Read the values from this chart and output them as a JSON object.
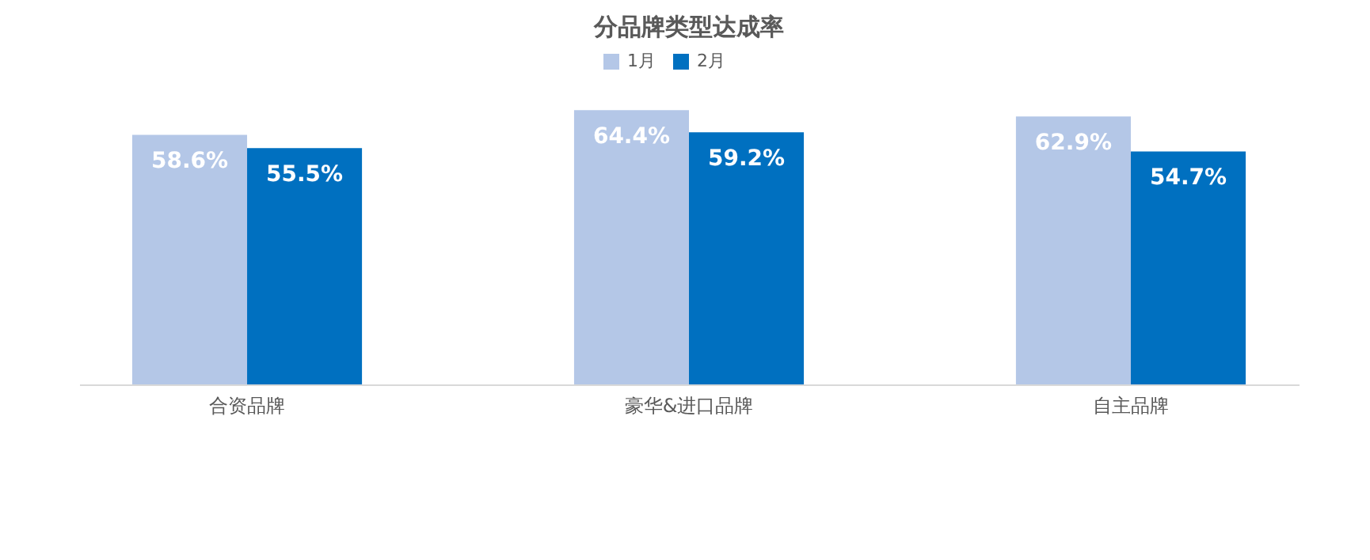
{
  "chart_data": {
    "type": "bar",
    "title": "分品牌类型达成率",
    "categories": [
      "合资品牌",
      "豪华&进口品牌",
      "自主品牌"
    ],
    "series": [
      {
        "name": "1月",
        "color": "#b4c7e7",
        "values": [
          58.6,
          64.4,
          62.9
        ],
        "value_labels": [
          "58.6%",
          "64.4%",
          "62.9%"
        ]
      },
      {
        "name": "2月",
        "color": "#0070c0",
        "values": [
          55.5,
          59.2,
          54.7
        ],
        "value_labels": [
          "55.5%",
          "59.2%",
          "54.7%"
        ]
      }
    ],
    "legend": "top",
    "tick_labels": "x"
  }
}
